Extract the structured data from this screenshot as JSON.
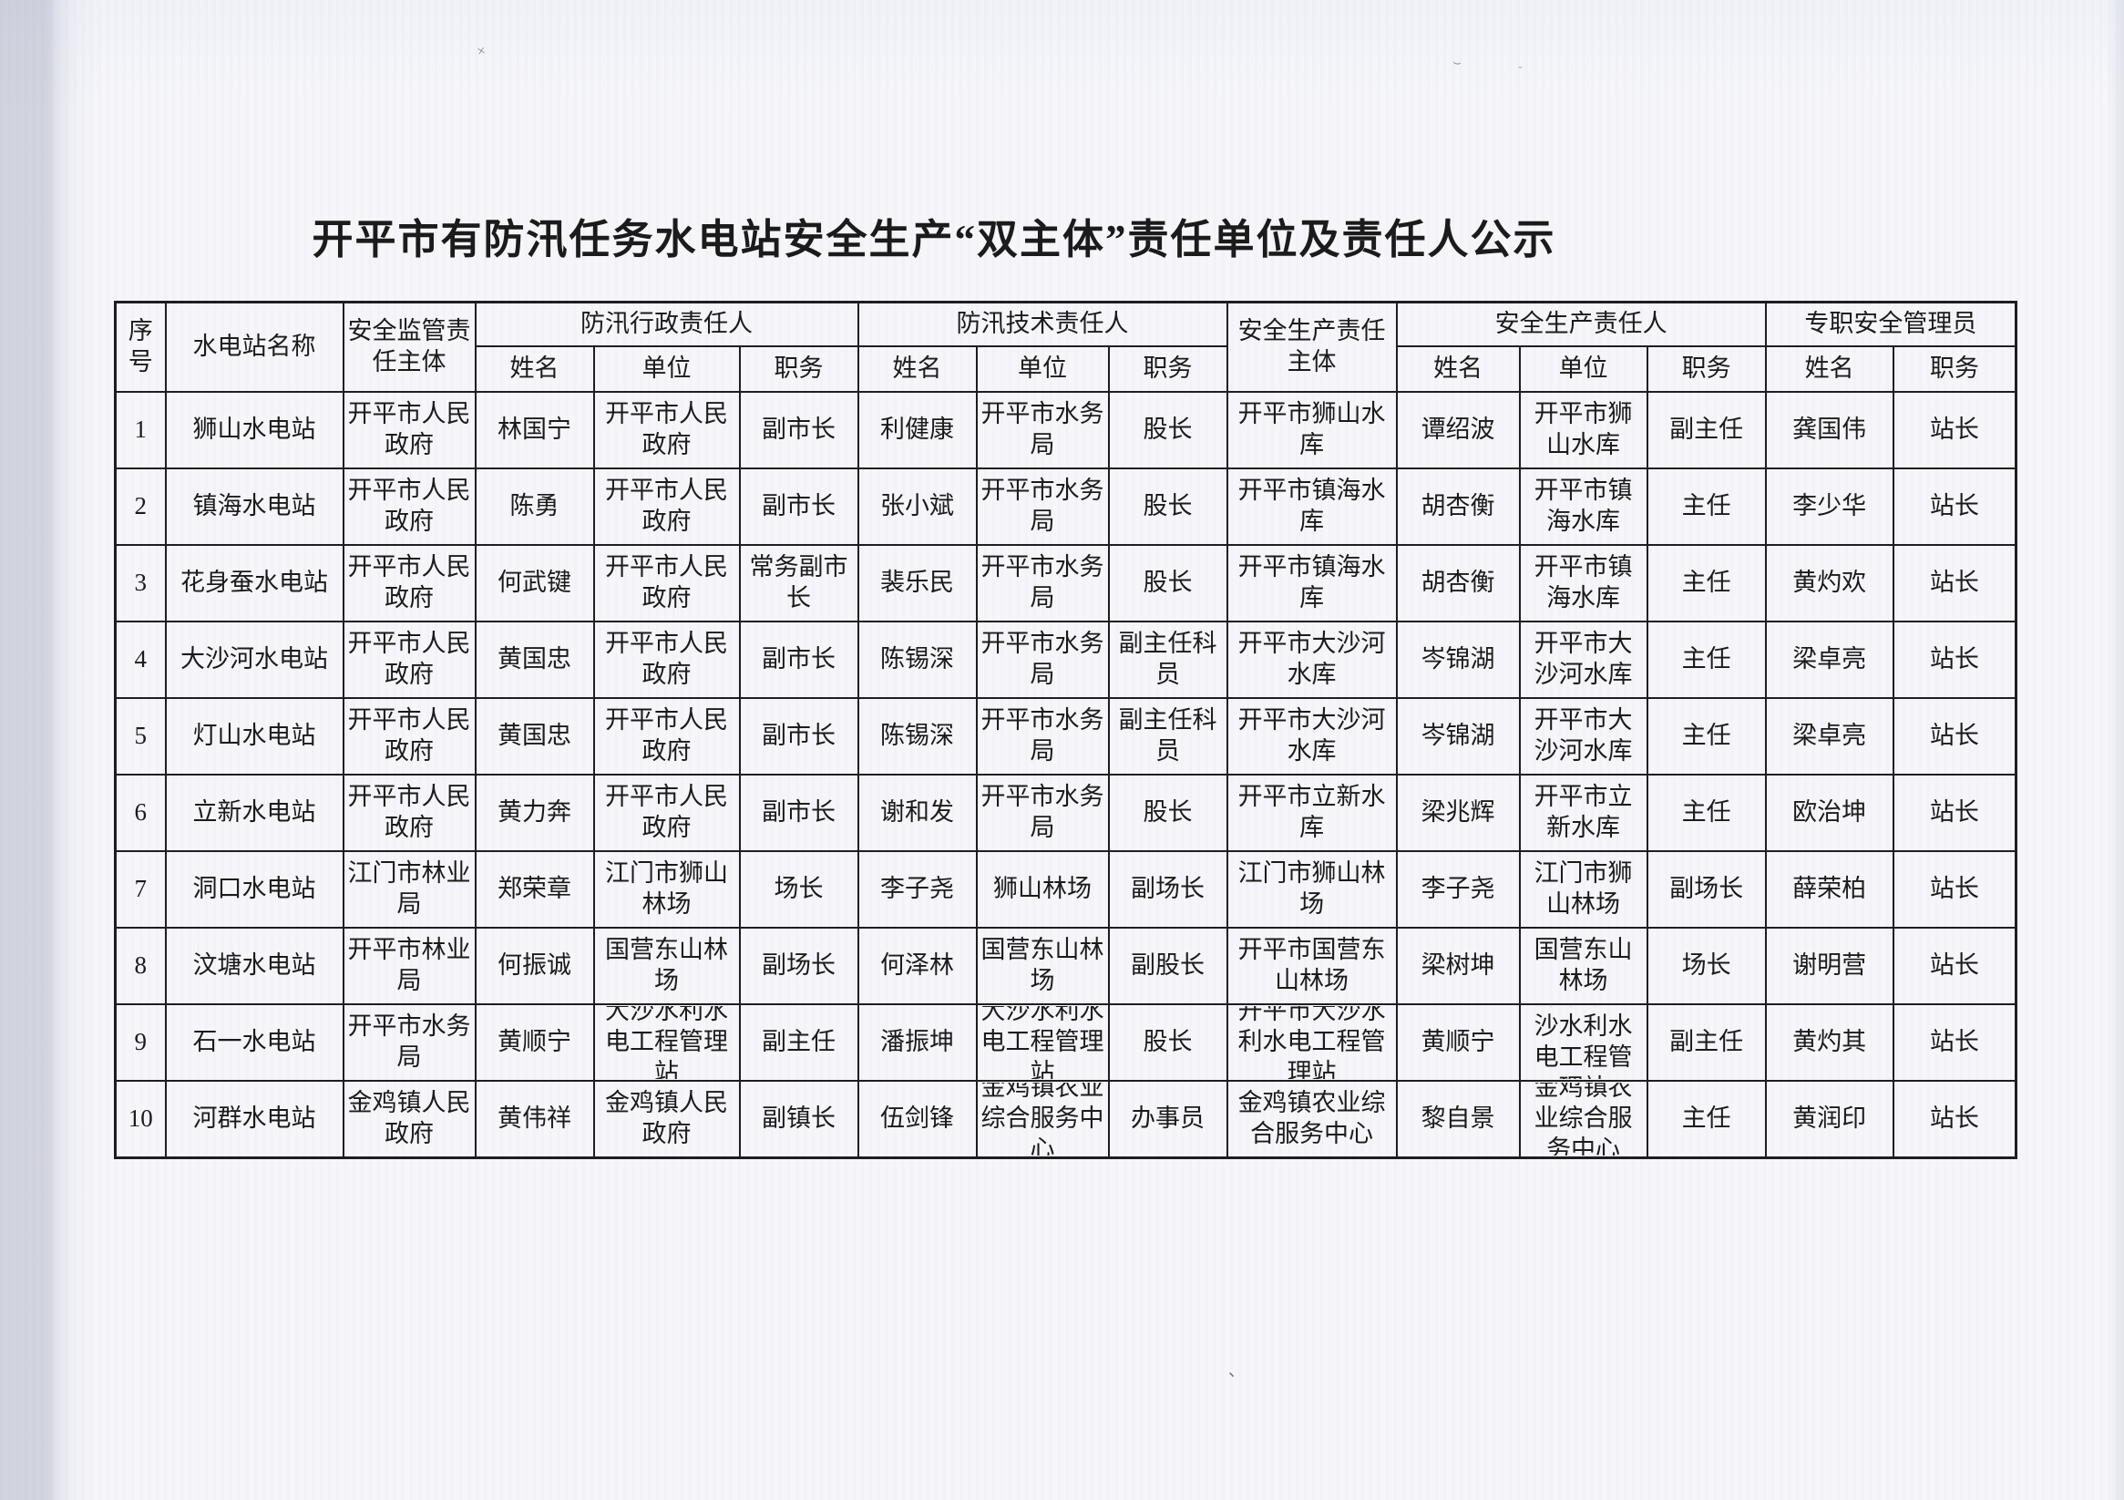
{
  "page": {
    "title": "开平市有防汛任务水电站安全生产“双主体”责任单位及责任人公示"
  },
  "table": {
    "headers": {
      "seq": "序号",
      "station_name": "水电站名称",
      "supervision_entity": "安全监管责任主体",
      "flood_admin_person": "防汛行政责任人",
      "flood_tech_person": "防汛技术责任人",
      "production_entity": "安全生产责任主体",
      "production_person": "安全生产责任人",
      "fulltime_safety_manager": "专职安全管理员"
    },
    "subheaders": [
      "姓名",
      "单位",
      "职务",
      "姓名",
      "单位",
      "职务",
      "姓名",
      "单位",
      "职务",
      "姓名",
      "职务"
    ],
    "rows": [
      [
        "1",
        "狮山水电站",
        "开平市人民政府",
        "林国宁",
        "开平市人民政府",
        "副市长",
        "利健康",
        "开平市水务局",
        "股长",
        "开平市狮山水库",
        "谭绍波",
        "开平市狮山水库",
        "副主任",
        "龚国伟",
        "站长"
      ],
      [
        "2",
        "镇海水电站",
        "开平市人民政府",
        "陈勇",
        "开平市人民政府",
        "副市长",
        "张小斌",
        "开平市水务局",
        "股长",
        "开平市镇海水库",
        "胡杏衡",
        "开平市镇海水库",
        "主任",
        "李少华",
        "站长"
      ],
      [
        "3",
        "花身蚕水电站",
        "开平市人民政府",
        "何武键",
        "开平市人民政府",
        "常务副市长",
        "裴乐民",
        "开平市水务局",
        "股长",
        "开平市镇海水库",
        "胡杏衡",
        "开平市镇海水库",
        "主任",
        "黄灼欢",
        "站长"
      ],
      [
        "4",
        "大沙河水电站",
        "开平市人民政府",
        "黄国忠",
        "开平市人民政府",
        "副市长",
        "陈锡深",
        "开平市水务局",
        "副主任科员",
        "开平市大沙河水库",
        "岑锦湖",
        "开平市大沙河水库",
        "主任",
        "梁卓亮",
        "站长"
      ],
      [
        "5",
        "灯山水电站",
        "开平市人民政府",
        "黄国忠",
        "开平市人民政府",
        "副市长",
        "陈锡深",
        "开平市水务局",
        "副主任科员",
        "开平市大沙河水库",
        "岑锦湖",
        "开平市大沙河水库",
        "主任",
        "梁卓亮",
        "站长"
      ],
      [
        "6",
        "立新水电站",
        "开平市人民政府",
        "黄力奔",
        "开平市人民政府",
        "副市长",
        "谢和发",
        "开平市水务局",
        "股长",
        "开平市立新水库",
        "梁兆辉",
        "开平市立新水库",
        "主任",
        "欧治坤",
        "站长"
      ],
      [
        "7",
        "洞口水电站",
        "江门市林业局",
        "郑荣章",
        "江门市狮山林场",
        "场长",
        "李子尧",
        "狮山林场",
        "副场长",
        "江门市狮山林场",
        "李子尧",
        "江门市狮山林场",
        "副场长",
        "薛荣柏",
        "站长"
      ],
      [
        "8",
        "汶塘水电站",
        "开平市林业局",
        "何振诚",
        "国营东山林场",
        "副场长",
        "何泽林",
        "国营东山林场",
        "副股长",
        "开平市国营东山林场",
        "梁树坤",
        "国营东山林场",
        "场长",
        "谢明营",
        "站长"
      ],
      [
        "9",
        "石一水电站",
        "开平市水务局",
        "黄顺宁",
        "大沙水利水电工程管理站",
        "副主任",
        "潘振坤",
        "大沙水利水电工程管理站",
        "股长",
        "开平市大沙水利水电工程管理站",
        "黄顺宁",
        "开平市大沙水利水电工程管理站",
        "副主任",
        "黄灼其",
        "站长"
      ],
      [
        "10",
        "河群水电站",
        "金鸡镇人民政府",
        "黄伟祥",
        "金鸡镇人民政府",
        "副镇长",
        "伍剑锋",
        "金鸡镇农业综合服务中心",
        "办事员",
        "金鸡镇农业综合服务中心",
        "黎自景",
        "金鸡镇农业综合服务中心",
        "主任",
        "黄润印",
        "站长"
      ]
    ],
    "column_keys": [
      "seq",
      "station-name",
      "supervision-entity",
      "flood-admin-name",
      "flood-admin-unit",
      "flood-admin-title",
      "flood-tech-name",
      "flood-tech-unit",
      "flood-tech-title",
      "production-entity",
      "production-name",
      "production-unit",
      "production-title",
      "safety-manager-name",
      "safety-manager-title"
    ]
  }
}
